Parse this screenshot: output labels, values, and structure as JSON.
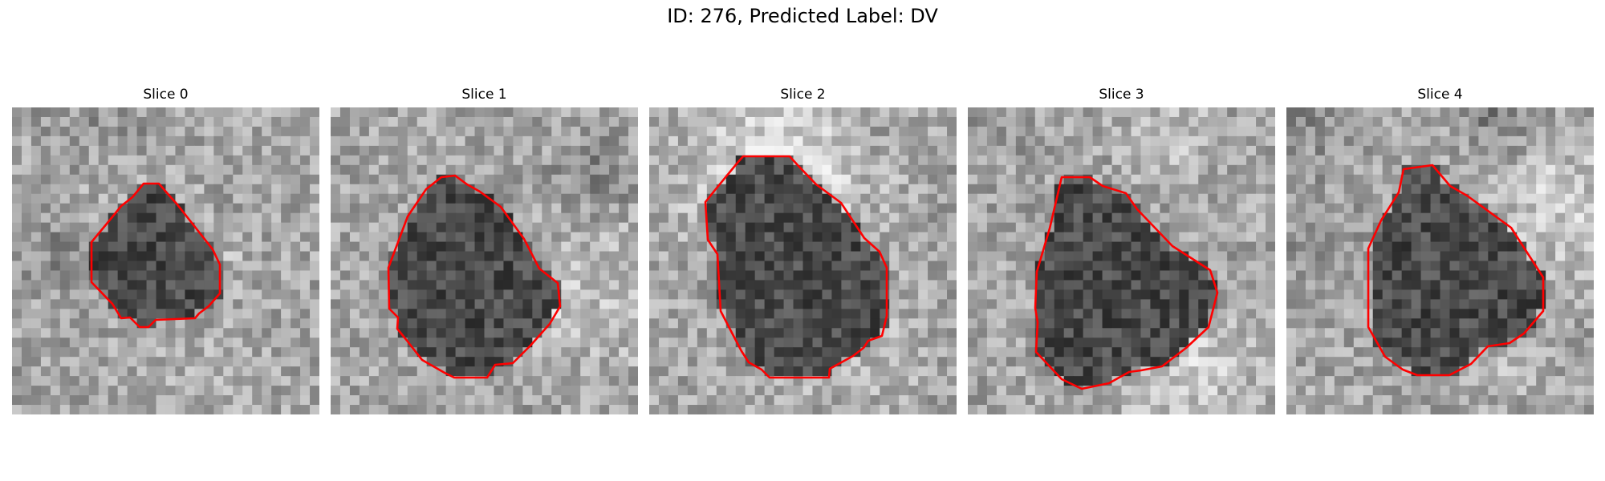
{
  "figure": {
    "title": "ID: 276, Predicted Label: DV"
  },
  "colors": {
    "contour": "#ff0000",
    "background": "#ffffff"
  },
  "panels": [
    {
      "title": "Slice 0"
    },
    {
      "title": "Slice 1"
    },
    {
      "title": "Slice 2"
    },
    {
      "title": "Slice 3"
    },
    {
      "title": "Slice 4"
    }
  ]
}
